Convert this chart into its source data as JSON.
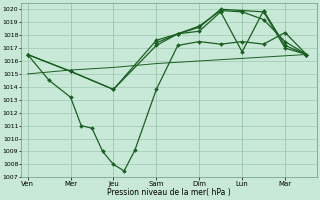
{
  "xlabel": "Pression niveau de la mer( hPa )",
  "ylim": [
    1007,
    1020.5
  ],
  "yticks": [
    1007,
    1008,
    1009,
    1010,
    1011,
    1012,
    1013,
    1014,
    1015,
    1016,
    1017,
    1018,
    1019,
    1020
  ],
  "day_labels": [
    "Ven",
    "Mer",
    "Jeu",
    "Sam",
    "Dim",
    "Lun",
    "Mar"
  ],
  "day_positions": [
    0,
    2,
    4,
    6,
    8,
    10,
    12
  ],
  "xlim": [
    -0.3,
    13.5
  ],
  "bg_color": "#c8e8d8",
  "grid_color": "#a0c8b0",
  "line_color": "#1a6020",
  "line_dip": {
    "x": [
      0,
      1,
      2,
      2.5,
      3,
      3.5,
      4,
      4.5,
      5,
      6,
      7,
      8,
      9,
      10,
      11,
      12,
      13
    ],
    "y": [
      1016.5,
      1014.5,
      1013.2,
      1011.0,
      1010.8,
      1009.0,
      1008.0,
      1007.5,
      1009.1,
      1013.8,
      1017.2,
      1017.5,
      1017.3,
      1017.5,
      1017.3,
      1018.2,
      1016.5
    ]
  },
  "line_trend": {
    "x": [
      0,
      2,
      4,
      6,
      8,
      10,
      12,
      13
    ],
    "y": [
      1015.0,
      1015.3,
      1015.5,
      1015.8,
      1016.0,
      1016.2,
      1016.4,
      1016.5
    ]
  },
  "line_upper1": {
    "x": [
      0,
      2,
      4,
      6,
      7,
      8,
      9,
      10,
      11,
      12,
      13
    ],
    "y": [
      1016.5,
      1015.2,
      1013.8,
      1017.2,
      1018.1,
      1018.3,
      1019.8,
      1016.7,
      1019.9,
      1017.2,
      1016.5
    ]
  },
  "line_upper2": {
    "x": [
      0,
      2,
      4,
      6,
      7,
      8,
      9,
      10,
      11,
      12,
      13
    ],
    "y": [
      1016.5,
      1015.2,
      1013.8,
      1017.6,
      1018.1,
      1018.6,
      1020.0,
      1019.9,
      1019.8,
      1017.0,
      1016.5
    ]
  },
  "line_upper3": {
    "x": [
      6,
      7,
      8,
      9,
      10,
      11,
      12,
      13
    ],
    "y": [
      1017.4,
      1018.1,
      1018.7,
      1019.9,
      1019.8,
      1019.2,
      1017.5,
      1016.5
    ]
  }
}
